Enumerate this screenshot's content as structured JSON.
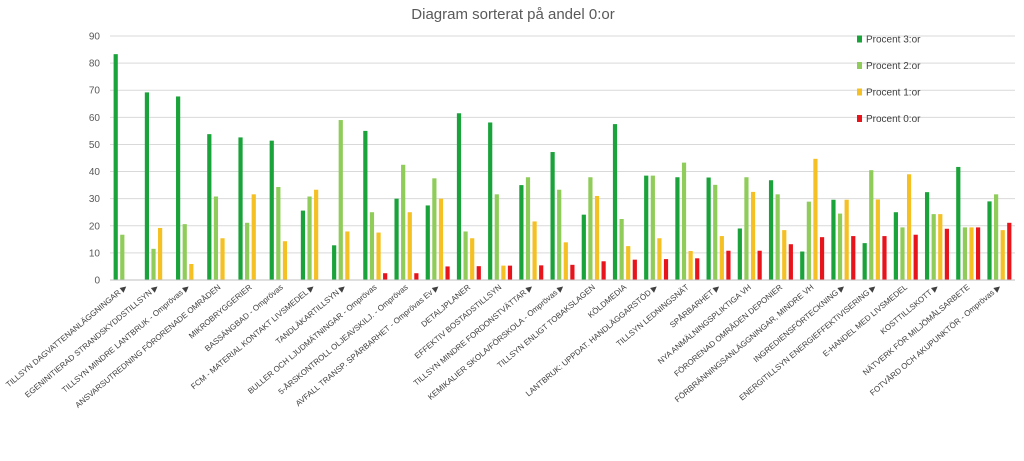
{
  "chart_data": {
    "type": "bar",
    "title": "Diagram sorterat på andel 0:or",
    "xlabel": "",
    "ylabel": "",
    "ylim": [
      0,
      90
    ],
    "yticks": [
      0,
      10,
      20,
      30,
      40,
      50,
      60,
      70,
      80,
      90
    ],
    "grid": true,
    "legend_position": "top-right",
    "categories": [
      "TILLSYN DAGVATTENANLÄGGNINGAR ▶",
      "EGENINITIERAD STRANDSKYDDSTILLSYN ▶",
      "TILLSYN MINDRE LANTBRUK - Omprövas ▶",
      "ANSVARSUTREDNING FÖRORENADE OMRÅDEN",
      "MIKROBRYGGERIER",
      "BASSÄNGBAD - Omprövas",
      "FCM - MATERIAL KONTAKT LIVSMEDEL ▶",
      "TANDLÄKARTILLSYN ▶",
      "BULLER OCH LJUDMÄTNINGAR - Omprövas",
      "5-ÅRSKONTROLL OLJEAVSKILJ. - Omprövas",
      "AVFALL TRANSP. SPÅRBARHET - Omprövas Ev ▶",
      "DETALJPLANER",
      "EFFEKTIV BOSTADSTILLSYN",
      "TILLSYN MINDRE FORDONSTVÄTTAR ▶",
      "KEMIKALIER SKOLA/FÖRSKOLA - Omprövas ▶",
      "TILLSYN ENLIGT TOBAKSLAGEN",
      "KÖLDMEDIA",
      "LANTBRUK: UPPDAT. HANDLÄGGARSTÖD ▶",
      "TILLSYN LEDNINGSNÄT",
      "SPÅRBARHET ▶",
      "NYA ANMÄLNINGSPLIKTIGA VH",
      "FÖRORENAD OMRÅDEN DEPONIER",
      "FÖRBRÄNNINGSANLÄGGNINGAR, MINDRE VH",
      "INGREDIENSFÖRTECKNING ▶",
      "ENERGITILLSYN ENERGIEFFEKTIVISERING ▶",
      "E-HANDEL MED LIVSMEDEL",
      "KOSTTILLSKOTT ▶",
      "NÄTVERK FÖR MILJÖMÅLSARBETE",
      "FOTVÅRD OCH AKUPUNKTÖR - Omprövas ▶"
    ],
    "series": [
      {
        "name": "Procent 3:or",
        "color": "#1aa33a",
        "values": [
          83.3,
          69.2,
          67.7,
          53.8,
          52.6,
          51.4,
          25.6,
          12.8,
          55.0,
          30.0,
          27.5,
          61.5,
          58.1,
          35.0,
          47.2,
          24.1,
          57.5,
          38.5,
          37.9,
          37.8,
          19.0,
          36.8,
          10.5,
          29.6,
          13.6,
          25.0,
          32.4,
          41.7,
          29.0
        ]
      },
      {
        "name": "Procent 2:or",
        "color": "#8fcc5a",
        "values": [
          16.7,
          11.5,
          20.6,
          30.8,
          21.1,
          34.3,
          30.8,
          59.0,
          25.0,
          42.5,
          37.5,
          17.9,
          31.6,
          37.9,
          33.3,
          37.9,
          22.5,
          38.5,
          43.3,
          35.1,
          37.9,
          31.6,
          28.9,
          24.5,
          40.5,
          19.4,
          24.3,
          19.4,
          31.6
        ]
      },
      {
        "name": "Procent 1:or",
        "color": "#f5c023",
        "values": [
          0.0,
          19.2,
          5.9,
          15.4,
          31.6,
          14.3,
          33.3,
          17.9,
          17.5,
          25.0,
          30.0,
          15.4,
          5.3,
          21.6,
          13.9,
          31.0,
          12.5,
          15.4,
          10.7,
          16.2,
          32.5,
          18.4,
          44.7,
          29.6,
          29.7,
          39.0,
          24.3,
          19.4,
          18.4
        ]
      },
      {
        "name": "Procent 0:or",
        "color": "#e8141b",
        "values": [
          0.0,
          0.0,
          0.0,
          0.0,
          0.0,
          0.0,
          0.0,
          0.0,
          2.5,
          2.5,
          5.0,
          5.1,
          5.3,
          5.4,
          5.6,
          6.9,
          7.5,
          7.7,
          8.0,
          10.8,
          10.8,
          13.2,
          15.8,
          16.2,
          16.2,
          16.7,
          18.9,
          19.4,
          21.1
        ]
      }
    ]
  }
}
